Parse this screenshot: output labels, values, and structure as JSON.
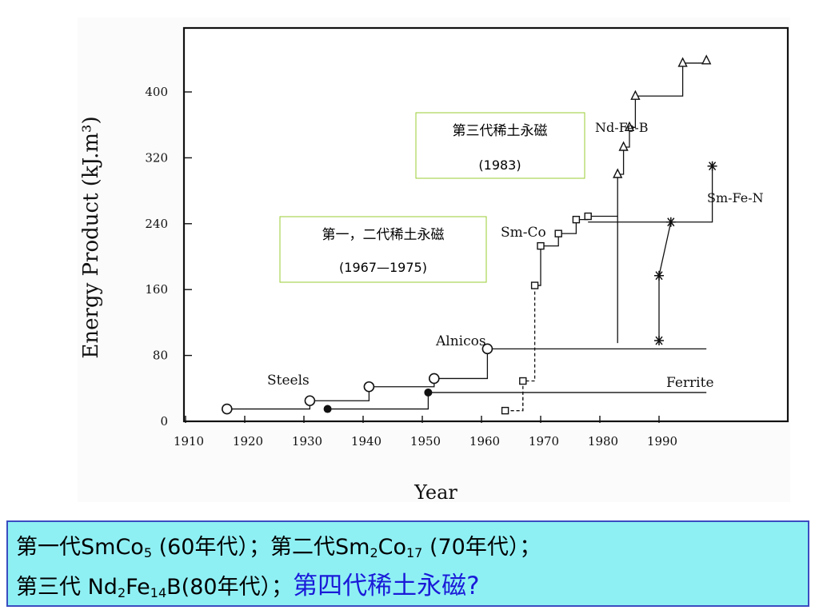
{
  "chart_data": {
    "type": "line",
    "xlabel": "Year",
    "ylabel": "Energy Product (kJ.m³)",
    "xlim": [
      1910,
      2000
    ],
    "ylim": [
      0,
      480
    ],
    "x_ticks": [
      "1910",
      "1920",
      "1930",
      "1940",
      "1950",
      "1960",
      "1970",
      "1980",
      "1990"
    ],
    "y_ticks": [
      "0",
      "80",
      "160",
      "240",
      "320",
      "400"
    ],
    "grid": false,
    "series": [
      {
        "name": "Steels",
        "marker": "open-circle",
        "points": [
          [
            1917,
            15
          ],
          [
            1931,
            25
          ]
        ]
      },
      {
        "name": "Alnicos",
        "marker": "open-circle",
        "points": [
          [
            1941,
            42
          ],
          [
            1952,
            52
          ],
          [
            1961,
            88
          ]
        ],
        "extends_to": 1998
      },
      {
        "name": "Ferrite",
        "marker": "filled-circle",
        "points": [
          [
            1934,
            15
          ],
          [
            1951,
            35
          ]
        ],
        "extends_to": 1998
      },
      {
        "name": "Sm-Co",
        "marker": "open-square",
        "points": [
          [
            1964,
            13
          ],
          [
            1967,
            49
          ],
          [
            1969,
            165
          ],
          [
            1970,
            213
          ],
          [
            1973,
            228
          ],
          [
            1976,
            245
          ],
          [
            1978,
            249
          ]
        ]
      },
      {
        "name": "Sm-Fe-N",
        "marker": "asterisk",
        "points": [
          [
            1990,
            98
          ],
          [
            1990,
            177
          ],
          [
            1992,
            242
          ],
          [
            1999,
            310
          ]
        ]
      },
      {
        "name": "Nd-Fe-B",
        "marker": "open-triangle",
        "points": [
          [
            1983,
            300
          ],
          [
            1984,
            333
          ],
          [
            1985,
            357
          ],
          [
            1986,
            395
          ],
          [
            1994,
            435
          ],
          [
            1998,
            438
          ]
        ]
      }
    ],
    "annotations": [
      {
        "text": "第三代稀土永磁",
        "sub": "(1983)"
      },
      {
        "text": "第一，二代稀土永磁",
        "sub": "(1967—1975)"
      }
    ]
  },
  "summary": {
    "line1": {
      "g1": "第一代",
      "m1": "SmCo",
      "s1": "5",
      "t1": " (60年代）；第二代",
      "m2": "Sm",
      "s2": "2",
      "m3": "Co",
      "s3": "17",
      "t2": " (70年代）；"
    },
    "line2": {
      "g1": "第三代 ",
      "m1": "Nd",
      "s1": "2",
      "m2": "Fe",
      "s2": "14",
      "t1": "B(80年代）；",
      "hl": "第四代稀土永磁?"
    }
  },
  "colors": {
    "box_fill": "#8ff0f4",
    "box_border": "#3b4cc0",
    "annotation_border": "#99cc33",
    "highlight": "#1a1ad8"
  }
}
